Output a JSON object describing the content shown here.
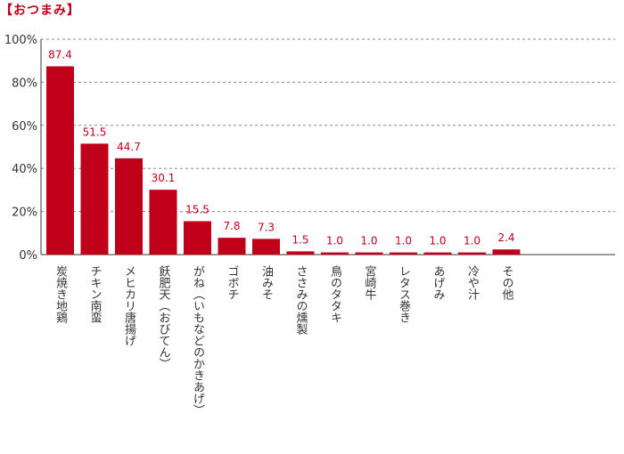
{
  "section_title": "【おつまみ】",
  "chart_data": {
    "type": "bar",
    "title": "【おつまみ】",
    "categories": [
      "炭焼き地鶏",
      "チキン南蛮",
      "メヒカリ唐揚げ",
      "飫肥天（おびてん）",
      "がね（いもなどのかきあげ）",
      "ゴボチ",
      "油みそ",
      "ささみの燻製",
      "鳥のタタキ",
      "宮崎牛",
      "レタス巻き",
      "あげみ",
      "冷や汁",
      "その他"
    ],
    "values": [
      87.4,
      51.5,
      44.7,
      30.1,
      15.5,
      7.8,
      7.3,
      1.5,
      1.0,
      1.0,
      1.0,
      1.0,
      1.0,
      2.4
    ],
    "value_labels": [
      "87.4",
      "51.5",
      "44.7",
      "30.1",
      "15.5",
      "7.8",
      "7.3",
      "1.5",
      "1.0",
      "1.0",
      "1.0",
      "1.0",
      "1.0",
      "2.4"
    ],
    "ylim": [
      0,
      100
    ],
    "yticks": [
      0,
      20,
      40,
      60,
      80,
      100
    ],
    "ytick_labels": [
      "0%",
      "20%",
      "40%",
      "60%",
      "80%",
      "100%"
    ],
    "grid": true,
    "bar_color": "#c0001b",
    "label_color": "#c0001b"
  }
}
